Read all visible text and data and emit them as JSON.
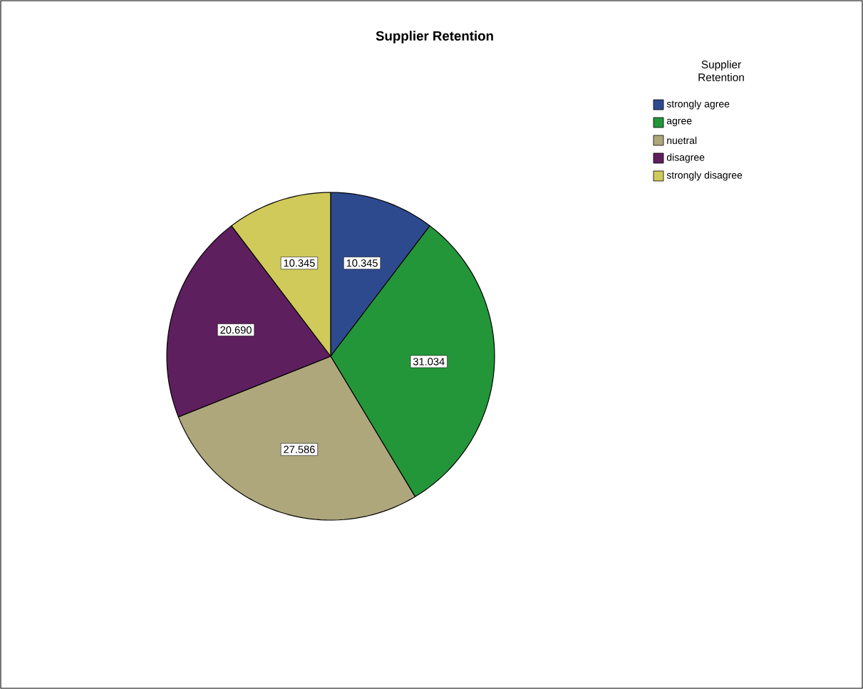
{
  "chart_data": {
    "type": "pie",
    "title": "Supplier Retention",
    "legend_title": "Supplier Retention",
    "categories": [
      "strongly agree",
      "agree",
      "nuetral",
      "disagree",
      "strongly disagree"
    ],
    "values": [
      10.345,
      31.034,
      27.586,
      20.69,
      10.345
    ],
    "value_labels": [
      "10.345",
      "31.034",
      "27.586",
      "20.690",
      "10.345"
    ],
    "colors": [
      "#2e4a8f",
      "#24963a",
      "#aea77c",
      "#5e1f5e",
      "#cfca5a"
    ],
    "legend": "top right"
  }
}
